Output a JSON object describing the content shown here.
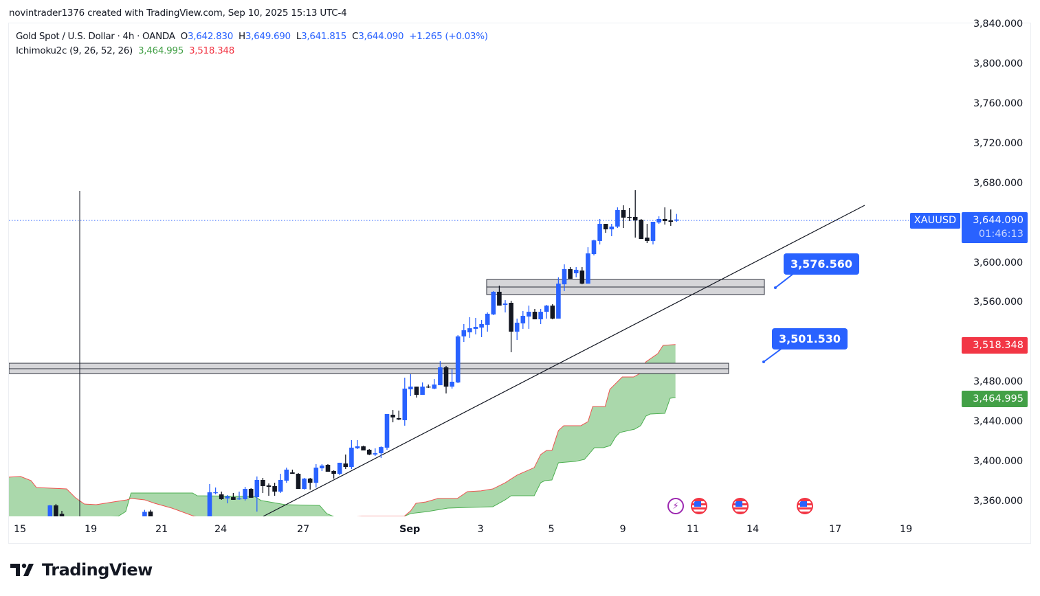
{
  "header": {
    "credit": "novintrader1376 created with TradingView.com, Sep 10, 2025 15:13 UTC-4"
  },
  "legend": {
    "symbol_line": "Gold Spot / U.S. Dollar · 4h · OANDA",
    "open_label": "O",
    "open": "3,642.830",
    "high_label": "H",
    "high": "3,649.690",
    "low_label": "L",
    "low": "3,641.815",
    "close_label": "C",
    "close": "3,644.090",
    "change": "+1.265 (+0.03%)",
    "indicator": "Ichimoku2c (9, 26, 52, 26)",
    "indicator_value_a": "3,464.995",
    "indicator_value_b": "3,518.348"
  },
  "price_axis": {
    "ticks": [
      "3,840.000",
      "3,800.000",
      "3,760.000",
      "3,720.000",
      "3,680.000",
      "3,600.000",
      "3,560.000",
      "3,480.000",
      "3,440.000",
      "3,400.000",
      "3,360.000"
    ],
    "symbol_tag": "XAUUSD",
    "last_price": "3,644.090",
    "countdown": "01:46:13",
    "span_b_tag": "3,518.348",
    "span_a_tag": "3,464.995"
  },
  "time_axis": {
    "ticks": [
      "15",
      "19",
      "21",
      "24",
      "27",
      "Sep",
      "3",
      "5",
      "9",
      "11",
      "14",
      "17",
      "19"
    ]
  },
  "annotations": {
    "upper_zone_label": "3,576.560",
    "lower_zone_label": "3,501.530"
  },
  "events": [
    {
      "icon": "lightning-icon"
    },
    {
      "icon": "us-flag-icon"
    },
    {
      "icon": "us-flag-icon"
    },
    {
      "icon": "us-flag-icon"
    }
  ],
  "footer": {
    "brand": "TradingView"
  },
  "colors": {
    "up": "#2962ff",
    "down": "#131722",
    "cloud_fill": "#a5d6a7",
    "span_a": "#4caf50",
    "span_b": "#ef5350",
    "accent": "#2962ff"
  },
  "chart_data": {
    "type": "candlestick",
    "title": "Gold Spot / U.S. Dollar · 4h · OANDA",
    "x_unit": "bar index (4h)",
    "ylim": [
      3345,
      3845
    ],
    "candles_fields": [
      "bar",
      "open",
      "high",
      "low",
      "close"
    ],
    "candles": [
      [
        -27,
        3330,
        3357,
        3330,
        3356.5
      ],
      [
        -26,
        3356.5,
        3358,
        3330,
        3330
      ],
      [
        -25,
        3348,
        3351,
        3330,
        3330
      ],
      [
        -11,
        3330,
        3352,
        3330,
        3350
      ],
      [
        -10,
        3350.3,
        3352,
        3330,
        3330
      ],
      [
        0,
        3344.8,
        3378.0,
        3344.8,
        3369.7
      ],
      [
        1,
        3369.0,
        3374.5,
        3367.6,
        3369.7
      ],
      [
        2,
        3367.6,
        3370.4,
        3362.1,
        3362.8
      ],
      [
        3,
        3363.5,
        3366.9,
        3358.6,
        3365.5
      ],
      [
        4,
        3364.8,
        3369.0,
        3362.1,
        3362.1
      ],
      [
        5,
        3362.8,
        3370.4,
        3362.1,
        3363.5
      ],
      [
        6,
        3362.8,
        3375.2,
        3361.4,
        3373.1
      ],
      [
        7,
        3373.1,
        3373.8,
        3364.2,
        3364.2
      ],
      [
        8,
        3364.8,
        3385.6,
        3350.3,
        3382.1
      ],
      [
        9,
        3382.1,
        3384.2,
        3369.0,
        3375.9
      ],
      [
        10,
        3376.6,
        3378.6,
        3366.2,
        3375.2
      ],
      [
        11,
        3375.9,
        3379.3,
        3366.2,
        3370.4
      ],
      [
        12,
        3370.4,
        3388.3,
        3369.0,
        3382.1
      ],
      [
        13,
        3381.4,
        3394.5,
        3379.3,
        3392.5
      ],
      [
        14,
        3389.7,
        3392.5,
        3388.3,
        3388.3
      ],
      [
        15,
        3388.3,
        3389.0,
        3373.1,
        3373.1
      ],
      [
        16,
        3373.1,
        3384.2,
        3372.4,
        3383.5
      ],
      [
        17,
        3383.5,
        3384.2,
        3372.4,
        3379.3
      ],
      [
        18,
        3379.3,
        3398.0,
        3374.5,
        3394.5
      ],
      [
        19,
        3393.8,
        3398.0,
        3391.1,
        3396.6
      ],
      [
        20,
        3397.3,
        3398.0,
        3390.4,
        3390.4
      ],
      [
        21,
        3391.1,
        3391.8,
        3383.5,
        3388.3
      ],
      [
        22,
        3388.3,
        3399.4,
        3386.9,
        3399.4
      ],
      [
        23,
        3398.7,
        3407.7,
        3393.2,
        3395.2
      ],
      [
        24,
        3395.2,
        3422.2,
        3393.2,
        3414.6
      ],
      [
        25,
        3413.9,
        3422.2,
        3413.2,
        3415.9
      ],
      [
        26,
        3415.9,
        3416.6,
        3411.8,
        3411.8
      ],
      [
        27,
        3412.5,
        3413.2,
        3407.0,
        3407.7
      ],
      [
        28,
        3407.7,
        3413.9,
        3406.3,
        3409.0
      ],
      [
        29,
        3409.0,
        3415.9,
        3404.2,
        3415.2
      ],
      [
        30,
        3414.6,
        3448.4,
        3412.5,
        3448.4
      ],
      [
        31,
        3447.7,
        3452.5,
        3440.1,
        3445.0
      ],
      [
        32,
        3444.3,
        3451.9,
        3442.2,
        3442.9
      ],
      [
        33,
        3442.2,
        3485.0,
        3436.7,
        3474.0
      ],
      [
        34,
        3473.3,
        3488.5,
        3466.4,
        3476.0
      ],
      [
        35,
        3476.0,
        3476.0,
        3465.0,
        3467.7
      ],
      [
        36,
        3467.7,
        3480.2,
        3467.7,
        3476.0
      ],
      [
        37,
        3476.0,
        3478.1,
        3474.6,
        3475.3
      ],
      [
        38,
        3474.0,
        3483.6,
        3473.3,
        3478.1
      ],
      [
        39,
        3477.4,
        3501.6,
        3477.4,
        3495.4
      ],
      [
        40,
        3495.4,
        3496.8,
        3469.1,
        3476.0
      ],
      [
        41,
        3476.0,
        3494.0,
        3474.0,
        3480.9
      ],
      [
        42,
        3480.2,
        3527.8,
        3479.5,
        3526.5
      ],
      [
        43,
        3526.5,
        3538.9,
        3520.9,
        3532.7
      ],
      [
        44,
        3530.6,
        3545.8,
        3525.1,
        3534.7
      ],
      [
        45,
        3534.1,
        3545.1,
        3528.5,
        3536.1
      ],
      [
        46,
        3535.4,
        3543.0,
        3525.8,
        3538.9
      ],
      [
        47,
        3538.2,
        3550.6,
        3531.3,
        3549.3
      ],
      [
        48,
        3548.6,
        3572.1,
        3547.9,
        3571.4
      ],
      [
        49,
        3571.4,
        3577.6,
        3557.5,
        3557.5
      ],
      [
        50,
        3558.2,
        3563.0,
        3550.6,
        3559.6
      ],
      [
        51,
        3560.3,
        3562.4,
        3510.6,
        3531.3
      ],
      [
        52,
        3531.3,
        3544.4,
        3523.0,
        3540.3
      ],
      [
        53,
        3539.6,
        3552.0,
        3534.1,
        3547.2
      ],
      [
        54,
        3546.5,
        3557.5,
        3534.1,
        3551.3
      ],
      [
        55,
        3551.3,
        3554.1,
        3543.7,
        3543.7
      ],
      [
        56,
        3543.7,
        3554.1,
        3538.9,
        3551.3
      ],
      [
        57,
        3551.3,
        3558.2,
        3544.4,
        3557.5
      ],
      [
        58,
        3557.5,
        3558.9,
        3543.7,
        3544.4
      ],
      [
        59,
        3544.4,
        3585.9,
        3544.4,
        3579.6
      ],
      [
        60,
        3578.9,
        3599.0,
        3572.1,
        3594.2
      ],
      [
        61,
        3594.2,
        3596.2,
        3584.5,
        3584.5
      ],
      [
        62,
        3590.0,
        3596.2,
        3585.9,
        3593.5
      ],
      [
        63,
        3592.8,
        3596.2,
        3578.9,
        3579.6
      ],
      [
        64,
        3579.6,
        3616.2,
        3579.6,
        3610.0
      ],
      [
        65,
        3609.3,
        3623.8,
        3608.0,
        3623.1
      ],
      [
        66,
        3622.5,
        3644.6,
        3619.0,
        3639.7
      ],
      [
        67,
        3639.7,
        3639.7,
        3630.7,
        3634.2
      ],
      [
        68,
        3634.2,
        3639.7,
        3627.3,
        3637.0
      ],
      [
        69,
        3637.0,
        3656.3,
        3635.6,
        3653.6
      ],
      [
        70,
        3653.6,
        3658.4,
        3635.6,
        3646.0
      ],
      [
        71,
        3646.7,
        3655.6,
        3642.5,
        3646.0
      ],
      [
        72,
        3646.7,
        3673.6,
        3625.9,
        3643.2
      ],
      [
        73,
        3643.9,
        3644.6,
        3624.5,
        3624.5
      ],
      [
        74,
        3625.9,
        3639.7,
        3620.4,
        3622.5
      ],
      [
        75,
        3622.5,
        3641.8,
        3619.0,
        3641.8
      ],
      [
        76,
        3641.1,
        3647.3,
        3639.7,
        3644.6
      ],
      [
        77,
        3644.6,
        3656.3,
        3639.0,
        3642.5
      ],
      [
        78,
        3643.2,
        3654.2,
        3637.7,
        3641.8
      ],
      [
        79,
        3642.83,
        3649.69,
        3641.815,
        3644.09
      ]
    ],
    "ichimoku_span_a": [
      [
        -34,
        3340
      ],
      [
        -15.5,
        3345.5
      ],
      [
        -14.2,
        3350.3
      ],
      [
        -13.3,
        3369.0
      ],
      [
        -2.9,
        3369.0
      ],
      [
        -2.1,
        3366.2
      ],
      [
        7.6,
        3365.5
      ],
      [
        8.7,
        3361.4
      ],
      [
        12.8,
        3357.2
      ],
      [
        18.6,
        3356.5
      ],
      [
        19.8,
        3348.3
      ],
      [
        20.9,
        3345.5
      ],
      [
        22.7,
        3341
      ],
      [
        25.8,
        3345.5
      ],
      [
        32.9,
        3345.5
      ],
      [
        34.0,
        3348.3
      ],
      [
        36.9,
        3350.3
      ],
      [
        40.3,
        3353.8
      ],
      [
        43.8,
        3354.5
      ],
      [
        47.9,
        3355.2
      ],
      [
        50.0,
        3362.1
      ],
      [
        51.0,
        3366.2
      ],
      [
        54.9,
        3366.2
      ],
      [
        56.0,
        3379.3
      ],
      [
        56.7,
        3381.4
      ],
      [
        57.9,
        3382.1
      ],
      [
        59.0,
        3399.4
      ],
      [
        61.9,
        3400.8
      ],
      [
        63.4,
        3402.8
      ],
      [
        65.1,
        3414.6
      ],
      [
        66.6,
        3414.6
      ],
      [
        67.8,
        3416.7
      ],
      [
        68.7,
        3425.6
      ],
      [
        69.4,
        3429.8
      ],
      [
        71.9,
        3433.2
      ],
      [
        72.9,
        3436.7
      ],
      [
        73.8,
        3446.3
      ],
      [
        74.5,
        3448.4
      ],
      [
        77.0,
        3449.1
      ],
      [
        77.9,
        3464.3
      ],
      [
        78.8,
        3464.995
      ]
    ],
    "ichimoku_span_b": [
      [
        -34,
        3384.9
      ],
      [
        -32,
        3385.6
      ],
      [
        -30.2,
        3381.4
      ],
      [
        -29.3,
        3374.5
      ],
      [
        -24.2,
        3373.1
      ],
      [
        -22.7,
        3364.2
      ],
      [
        -21.2,
        3357.9
      ],
      [
        -19.2,
        3357.2
      ],
      [
        -16.3,
        3360.0
      ],
      [
        -14.0,
        3362.1
      ],
      [
        -13.3,
        3363.5
      ],
      [
        -11.0,
        3362.1
      ],
      [
        -9.3,
        3358.6
      ],
      [
        -6.4,
        3353.8
      ],
      [
        -2.6,
        3345.5
      ],
      [
        5,
        3338
      ],
      [
        25.8,
        3345.5
      ],
      [
        32.9,
        3345.5
      ],
      [
        34.0,
        3351.0
      ],
      [
        34.9,
        3358.6
      ],
      [
        36.6,
        3360.0
      ],
      [
        38.6,
        3363.5
      ],
      [
        41.9,
        3363.5
      ],
      [
        43.6,
        3370.4
      ],
      [
        45.9,
        3371.1
      ],
      [
        47.9,
        3373.1
      ],
      [
        50.0,
        3379.3
      ],
      [
        52.0,
        3387.0
      ],
      [
        54.9,
        3394.5
      ],
      [
        56.0,
        3407.7
      ],
      [
        57.0,
        3411.8
      ],
      [
        57.9,
        3411.8
      ],
      [
        59.0,
        3431.8
      ],
      [
        59.9,
        3436.7
      ],
      [
        62.8,
        3436.7
      ],
      [
        64.0,
        3440.8
      ],
      [
        64.8,
        3456.0
      ],
      [
        66.9,
        3456.0
      ],
      [
        67.7,
        3473.3
      ],
      [
        69.8,
        3485.7
      ],
      [
        71.7,
        3485.7
      ],
      [
        72.8,
        3489.2
      ],
      [
        73.8,
        3500.9
      ],
      [
        75.8,
        3509.2
      ],
      [
        76.7,
        3517.5
      ],
      [
        78.8,
        3518.348
      ]
    ],
    "zones": [
      {
        "top": 3583.8,
        "mid": 3576.2,
        "bottom": 3568.6
      },
      {
        "top": 3499.5,
        "mid": 3494.0,
        "bottom": 3489.2
      }
    ],
    "last_price": 3644.09
  }
}
